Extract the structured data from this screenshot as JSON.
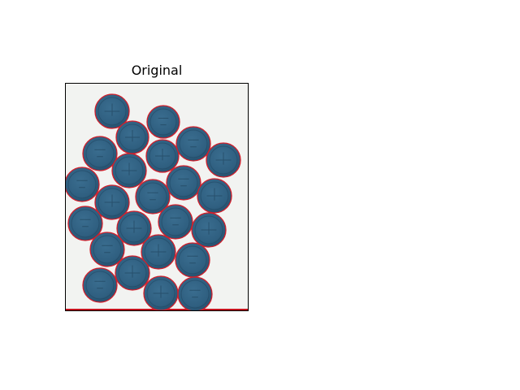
{
  "figure": {
    "subplot_title": "Original"
  },
  "image": {
    "description_icon": "coins-photo",
    "coin_count": 24,
    "colors": {
      "background": "#f2f3f1",
      "coin_fill": "#2f5f80",
      "coin_edge": "#1f4560",
      "contour": "#d21f2b",
      "axes_border": "#000000"
    }
  }
}
